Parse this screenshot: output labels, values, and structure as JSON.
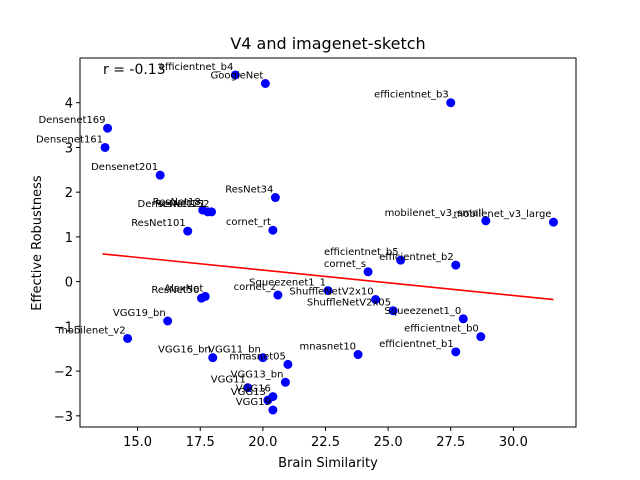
{
  "chart_data": {
    "type": "scatter",
    "title": "V4 and imagenet-sketch",
    "xlabel": "Brain Similarity",
    "ylabel": "Effective Robustness",
    "xlim": [
      12.7,
      32.5
    ],
    "ylim": [
      -3.25,
      5.0
    ],
    "xticks": [
      15.0,
      17.5,
      20.0,
      22.5,
      25.0,
      27.5,
      30.0
    ],
    "xtick_labels": [
      "15.0",
      "17.5",
      "20.0",
      "22.5",
      "25.0",
      "27.5",
      "30.0"
    ],
    "yticks": [
      -3,
      -2,
      -1,
      0,
      1,
      2,
      3,
      4
    ],
    "ytick_labels": [
      "−3",
      "−2",
      "−1",
      "0",
      "1",
      "2",
      "3",
      "4"
    ],
    "annotation": "r = -0.13",
    "grid": false,
    "point_color": "#0000ff",
    "fit_color": "#ff0000",
    "fit_line": {
      "x": [
        13.6,
        31.6
      ],
      "y": [
        0.62,
        -0.4
      ]
    },
    "points": [
      {
        "label": "efficientnet_b4",
        "x": 18.9,
        "y": 4.62
      },
      {
        "label": "GoogleNet",
        "x": 20.1,
        "y": 4.43
      },
      {
        "label": "efficientnet_b3",
        "x": 27.5,
        "y": 4.0
      },
      {
        "label": "Densenet169",
        "x": 13.8,
        "y": 3.43
      },
      {
        "label": "Densenet161",
        "x": 13.7,
        "y": 3.0
      },
      {
        "label": "Densenet201",
        "x": 15.9,
        "y": 2.38
      },
      {
        "label": "ResNet34",
        "x": 20.5,
        "y": 1.88
      },
      {
        "label": "ResNet18",
        "x": 17.6,
        "y": 1.6
      },
      {
        "label": "DenseNet121",
        "x": 17.8,
        "y": 1.56
      },
      {
        "label": "ResNet152",
        "x": 17.95,
        "y": 1.56
      },
      {
        "label": "mobilenet_v3_small",
        "x": 28.9,
        "y": 1.36
      },
      {
        "label": "mobilenet_v3_large",
        "x": 31.6,
        "y": 1.33
      },
      {
        "label": "ResNet101",
        "x": 17.0,
        "y": 1.13
      },
      {
        "label": "cornet_rt",
        "x": 20.4,
        "y": 1.15
      },
      {
        "label": "efficientnet_b5",
        "x": 25.5,
        "y": 0.48
      },
      {
        "label": "efficientnet_b2",
        "x": 27.7,
        "y": 0.37
      },
      {
        "label": "cornet_s",
        "x": 24.2,
        "y": 0.22
      },
      {
        "label": "Squeezenet1_1",
        "x": 22.6,
        "y": -0.2
      },
      {
        "label": "cornet_z",
        "x": 20.6,
        "y": -0.3
      },
      {
        "label": "AlexNet",
        "x": 17.7,
        "y": -0.33
      },
      {
        "label": "ResNet50",
        "x": 17.55,
        "y": -0.37
      },
      {
        "label": "ShuffleNetV2x10",
        "x": 24.5,
        "y": -0.4
      },
      {
        "label": "ShuffleNetV2x05",
        "x": 25.2,
        "y": -0.65
      },
      {
        "label": "Squeezenet1_0",
        "x": 28.0,
        "y": -0.83
      },
      {
        "label": "VGG19_bn",
        "x": 16.2,
        "y": -0.88
      },
      {
        "label": "efficientnet_b0",
        "x": 28.7,
        "y": -1.23
      },
      {
        "label": "mobilenet_v2",
        "x": 14.6,
        "y": -1.27
      },
      {
        "label": "efficientnet_b1",
        "x": 27.7,
        "y": -1.57
      },
      {
        "label": "mnasnet10",
        "x": 23.8,
        "y": -1.63
      },
      {
        "label": "VGG16_bn",
        "x": 18.0,
        "y": -1.7
      },
      {
        "label": "VGG11_bn",
        "x": 20.0,
        "y": -1.7
      },
      {
        "label": "mnasnet05",
        "x": 21.0,
        "y": -1.85
      },
      {
        "label": "VGG13_bn",
        "x": 20.9,
        "y": -2.25
      },
      {
        "label": "VGG11",
        "x": 19.4,
        "y": -2.37
      },
      {
        "label": "VGG16",
        "x": 20.4,
        "y": -2.57
      },
      {
        "label": "VGG13",
        "x": 20.2,
        "y": -2.65
      },
      {
        "label": "VGG19",
        "x": 20.4,
        "y": -2.87
      }
    ]
  }
}
